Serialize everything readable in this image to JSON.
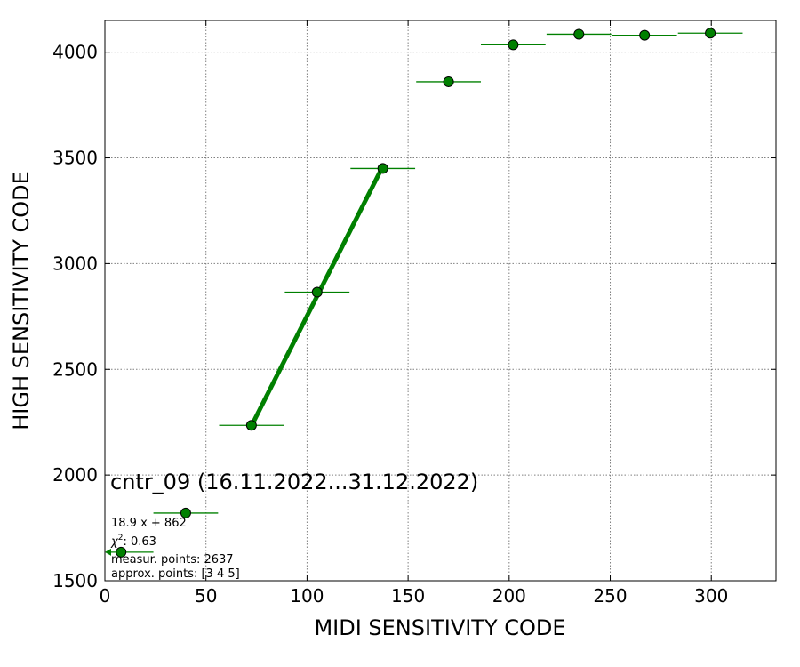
{
  "chart_data": {
    "type": "scatter",
    "xlabel": "MIDI SENSITIVITY CODE",
    "ylabel": "HIGH SENSITIVITY CODE",
    "xlim": [
      0,
      332
    ],
    "ylim": [
      1500,
      4150
    ],
    "x_ticks": [
      0,
      50,
      100,
      150,
      200,
      250,
      300
    ],
    "y_ticks": [
      1500,
      2000,
      2500,
      3000,
      3500,
      4000
    ],
    "grid": true,
    "colors": {
      "marker": "#008000",
      "marker_edge": "#000000",
      "errorbar": "#008000",
      "fit_line": "#008000",
      "grid": "#808080"
    },
    "points": [
      {
        "x": 8,
        "y": 1635,
        "xerr": 16
      },
      {
        "x": 40,
        "y": 1820,
        "xerr": 16
      },
      {
        "x": 72.5,
        "y": 2235,
        "xerr": 16
      },
      {
        "x": 105,
        "y": 2865,
        "xerr": 16
      },
      {
        "x": 137.5,
        "y": 3450,
        "xerr": 16
      },
      {
        "x": 170,
        "y": 3860,
        "xerr": 16
      },
      {
        "x": 202,
        "y": 4035,
        "xerr": 16
      },
      {
        "x": 234.5,
        "y": 4085,
        "xerr": 16
      },
      {
        "x": 267,
        "y": 4080,
        "xerr": 16
      },
      {
        "x": 299.5,
        "y": 4090,
        "xerr": 16
      }
    ],
    "fit": {
      "slope": 18.9,
      "intercept": 862,
      "x_range": [
        72.5,
        137.5
      ]
    },
    "annotation": {
      "title": "cntr_09 (16.11.2022...31.12.2022)",
      "equation": "18.9 x + 862",
      "chi2_symbol": "χ",
      "chi2_label": ": 0.63",
      "measur_points": "measur. points: 2637",
      "approx_points": "approx. points: [3 4 5]"
    }
  }
}
